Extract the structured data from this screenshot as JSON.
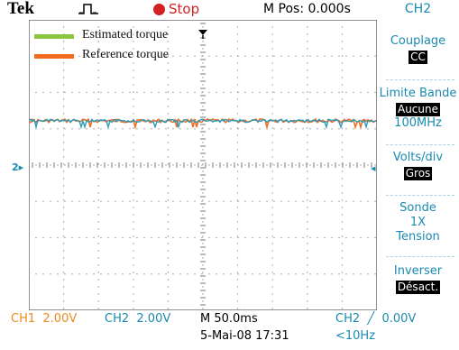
{
  "header": {
    "brand": "Tek",
    "run_state": "Stop",
    "m_pos": "M Pos: 0.000s",
    "channel": "CH2"
  },
  "legend": {
    "items": [
      {
        "label": "Estimated torque",
        "color": "#8cc63f"
      },
      {
        "label": "Reference torque",
        "color": "#f26b21"
      }
    ]
  },
  "markers": {
    "channel_level": "2"
  },
  "menu": {
    "couplage": {
      "label": "Couplage",
      "value": "CC"
    },
    "bandwidth": {
      "label": "Limite Bande",
      "value": "Aucune",
      "sub": "100MHz"
    },
    "volts": {
      "label": "Volts/div",
      "value": "Gros"
    },
    "probe": {
      "label": "Sonde",
      "line1": "1X",
      "line2": "Tension"
    },
    "invert": {
      "label": "Inverser",
      "value": "Désact."
    }
  },
  "footer": {
    "ch1": "CH1  2.00V",
    "ch2": "CH2  2.00V",
    "timebase": "M 50.0ms",
    "trigger": "CH2  ╱  0.00V",
    "date": "5-Mai-08 17:31",
    "frequency": "<10Hz"
  },
  "colors": {
    "channel": "#1a8ab0",
    "ch1": "#e88a1e",
    "stop": "#d42020",
    "estimated": "#8cc63f",
    "reference": "#f26b21"
  }
}
